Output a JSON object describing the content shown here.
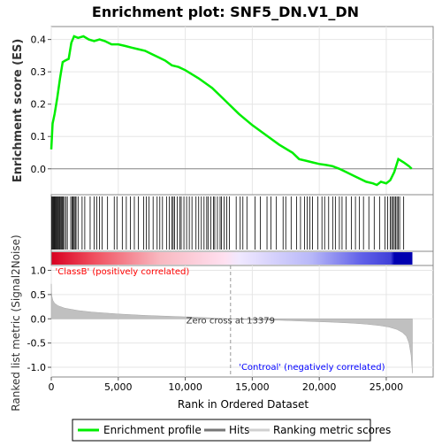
{
  "chart_data": {
    "type": "line",
    "title": "Enrichment plot: SNF5_DN.V1_DN",
    "top_panel": {
      "ylabel": "Enrichment score (ES)",
      "ylim": [
        -0.08,
        0.44
      ],
      "yticks": [
        0.0,
        0.1,
        0.2,
        0.3,
        0.4
      ],
      "ytick_labels": [
        "0.0",
        "0.1",
        "0.2",
        "0.3",
        "0.4"
      ],
      "grid": true,
      "series": [
        {
          "name": "Enrichment profile",
          "color": "#00ee00",
          "x": [
            0,
            100,
            250,
            450,
            650,
            850,
            1050,
            1300,
            1500,
            1700,
            2000,
            2400,
            2800,
            3200,
            3600,
            4000,
            4500,
            5000,
            5500,
            6000,
            6500,
            7000,
            7500,
            8000,
            8500,
            9000,
            9500,
            10000,
            11000,
            12000,
            13000,
            14000,
            15000,
            16000,
            17000,
            18000,
            18500,
            19000,
            19500,
            20000,
            20500,
            21000,
            21500,
            22000,
            22500,
            23000,
            23500,
            24000,
            24300,
            24600,
            25000,
            25300,
            25600,
            25900,
            26300,
            26700,
            26900
          ],
          "y": [
            0.06,
            0.14,
            0.17,
            0.22,
            0.28,
            0.33,
            0.335,
            0.34,
            0.39,
            0.41,
            0.405,
            0.41,
            0.4,
            0.395,
            0.4,
            0.395,
            0.385,
            0.385,
            0.38,
            0.375,
            0.37,
            0.365,
            0.355,
            0.345,
            0.335,
            0.32,
            0.315,
            0.305,
            0.28,
            0.25,
            0.21,
            0.17,
            0.135,
            0.105,
            0.075,
            0.05,
            0.03,
            0.025,
            0.02,
            0.015,
            0.012,
            0.008,
            0.0,
            -0.01,
            -0.02,
            -0.03,
            -0.04,
            -0.045,
            -0.05,
            -0.04,
            -0.045,
            -0.035,
            -0.01,
            0.03,
            0.02,
            0.008,
            0.0
          ]
        }
      ]
    },
    "hits": {
      "name": "Hits",
      "x": [
        30,
        80,
        140,
        200,
        260,
        320,
        380,
        430,
        490,
        560,
        620,
        680,
        750,
        820,
        900,
        980,
        1100,
        1200,
        1450,
        1550,
        1620,
        1700,
        1780,
        1850,
        2000,
        2300,
        2500,
        2900,
        3200,
        3400,
        3600,
        3800,
        4200,
        4700,
        4900,
        5300,
        5600,
        5900,
        6200,
        6500,
        6900,
        7100,
        7300,
        7600,
        7900,
        8100,
        8300,
        8600,
        8800,
        9000,
        9100,
        9200,
        9400,
        9600,
        9700,
        9900,
        10100,
        10300,
        10500,
        10800,
        11000,
        11200,
        11400,
        11600,
        11700,
        11900,
        12100,
        12200,
        12400,
        12600,
        12700,
        12900,
        13100,
        13300,
        13800,
        14100,
        14300,
        14600,
        15200,
        15600,
        16100,
        16400,
        16800,
        17300,
        17500,
        17900,
        18300,
        18600,
        18900,
        19100,
        19300,
        19500,
        19900,
        20200,
        20400,
        20700,
        21000,
        21200,
        21500,
        21700,
        22000,
        22400,
        22700,
        23000,
        23300,
        23700,
        24100,
        24500,
        24900,
        25100,
        25300,
        25400,
        25500,
        25600,
        25700,
        25800,
        25900,
        26000,
        26300
      ]
    },
    "bottom_panel": {
      "ylabel": "Ranked list metric (Signal2Noise)",
      "xlabel": "Rank in Ordered Dataset",
      "ylim": [
        -1.2,
        1.1
      ],
      "yticks": [
        1.0,
        0.5,
        0.0,
        -0.5,
        -1.0
      ],
      "ytick_labels": [
        "1.0",
        "0.5",
        "0.0",
        "-0.5",
        "-1.0"
      ],
      "xlim": [
        0,
        28500
      ],
      "xticks": [
        0,
        5000,
        10000,
        15000,
        20000,
        25000
      ],
      "xtick_labels": [
        "0",
        "5,000",
        "10,000",
        "15,000",
        "20,000",
        "25,000"
      ],
      "grid": true,
      "series": [
        {
          "name": "Ranking metric scores",
          "color": "#c0c0c0",
          "x": [
            0,
            20,
            60,
            120,
            250,
            500,
            1000,
            2000,
            3000,
            5000,
            7000,
            9000,
            11000,
            13379,
            15000,
            17000,
            19000,
            21000,
            22500,
            23500,
            24500,
            25200,
            25800,
            26200,
            26500,
            26700,
            26850,
            26950
          ],
          "y": [
            0.72,
            0.55,
            0.45,
            0.38,
            0.32,
            0.27,
            0.22,
            0.17,
            0.14,
            0.1,
            0.07,
            0.05,
            0.03,
            0.0,
            -0.02,
            -0.03,
            -0.05,
            -0.07,
            -0.09,
            -0.11,
            -0.14,
            -0.17,
            -0.22,
            -0.28,
            -0.36,
            -0.5,
            -0.75,
            -1.12
          ]
        }
      ],
      "annotations": [
        {
          "text": "'ClassB' (positively correlated)",
          "color": "#ff0000",
          "x": 300,
          "y": 0.92
        },
        {
          "text": "Zero cross at 13379",
          "color": "#333333",
          "x": 13379,
          "y": -0.1
        },
        {
          "text": "'Controal' (negatively correlated)",
          "color": "#0000ff",
          "x": 14000,
          "y": -1.05
        }
      ],
      "zero_cross": 13379
    },
    "legend": {
      "placement": "bottom",
      "entries": [
        "Enrichment profile",
        "Hits",
        "Ranking metric scores"
      ]
    }
  }
}
